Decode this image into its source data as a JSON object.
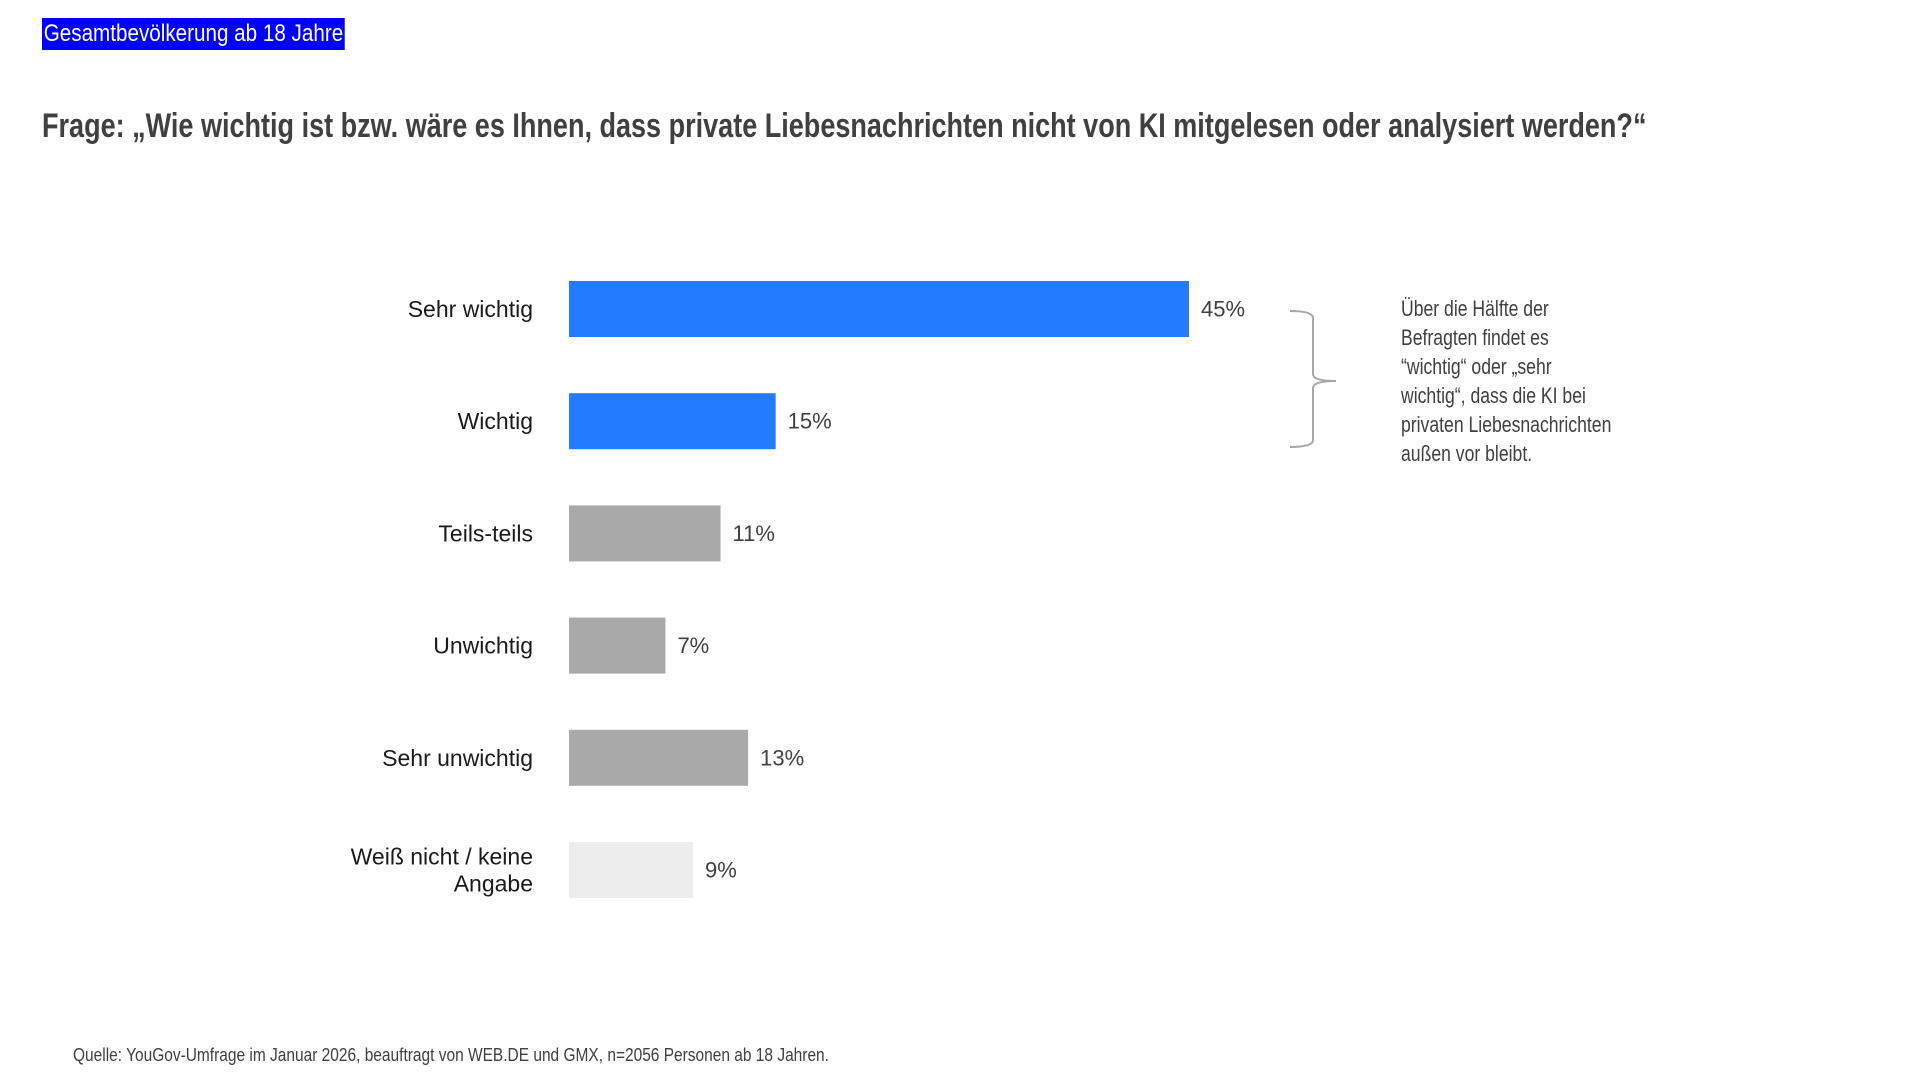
{
  "tag": "Gesamtbevölkerung ab 18 Jahre",
  "title": "Frage: „Wie wichtig ist bzw. wäre es Ihnen, dass private Liebesnachrichten nicht von KI mitgelesen oder analysiert werden?“",
  "annotation": {
    "lines": [
      "Über die Hälfte der",
      "Befragten findet es",
      "“wichtig“ oder „sehr",
      "wichtig“, dass die KI bei",
      "privaten Liebesnachrichten",
      "außen vor bleibt."
    ],
    "bracket_color": "#a6a6a6"
  },
  "source": "Quelle: YouGov-Umfrage im Januar 2026, beauftragt von WEB.DE und GMX, n=2056 Personen ab 18 Jahren.",
  "colors": {
    "tag_bg": "#0000ff",
    "important": "#237cff",
    "unimportant": "#a9a9a9",
    "no_answer": "#ededed"
  },
  "chart_data": {
    "type": "bar",
    "orientation": "horizontal",
    "title": "Frage: „Wie wichtig ist bzw. wäre es Ihnen, dass private Liebesnachrichten nicht von KI mitgelesen oder analysiert werden?“",
    "subtitle": "Gesamtbevölkerung ab 18 Jahre",
    "xlabel": "",
    "ylabel": "",
    "unit": "%",
    "grid": false,
    "categories": [
      [
        "Sehr wichtig"
      ],
      [
        "Wichtig"
      ],
      [
        "Teils-teils"
      ],
      [
        "Unwichtig"
      ],
      [
        "Sehr unwichtig"
      ],
      [
        "Weiß nicht / keine",
        "Angabe"
      ]
    ],
    "values": [
      45,
      15,
      11,
      7,
      13,
      9
    ],
    "value_labels": [
      "45%",
      "15%",
      "11%",
      "7%",
      "13%",
      "9%"
    ],
    "bar_colors": [
      "#237cff",
      "#237cff",
      "#a9a9a9",
      "#a9a9a9",
      "#a9a9a9",
      "#ededed"
    ],
    "xlim": [
      0,
      45
    ],
    "annotation": "Über die Hälfte der Befragten findet es “wichtig“ oder „sehr wichtig“, dass die KI bei privaten Liebesnachrichten außen vor bleibt."
  }
}
